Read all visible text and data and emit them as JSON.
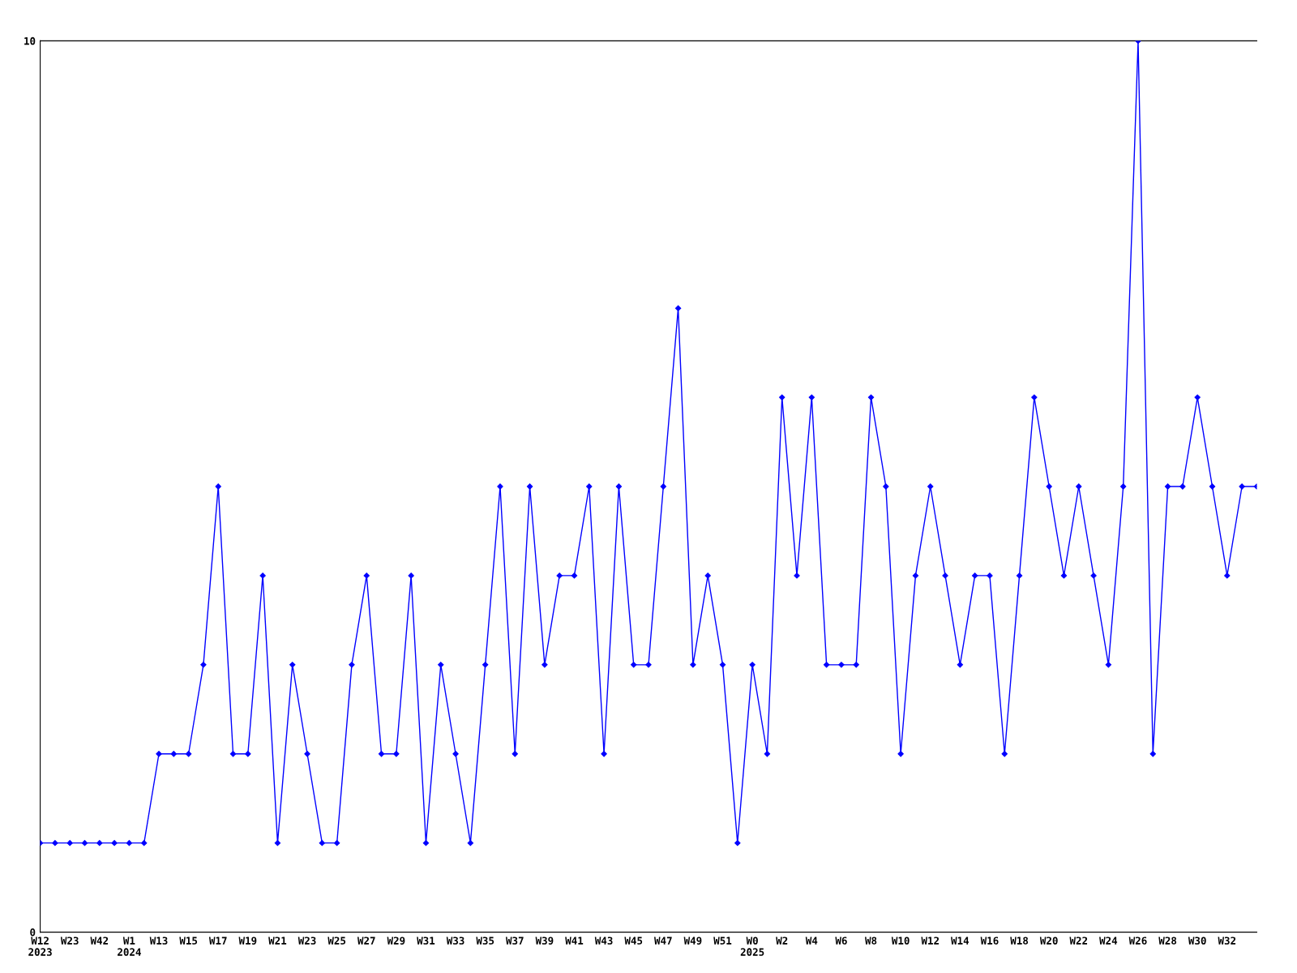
{
  "chart_data": {
    "type": "line",
    "categories": [
      "W12\n2023",
      null,
      "W23",
      null,
      "W42",
      null,
      "W1\n2024",
      null,
      "W13",
      null,
      "W15",
      null,
      "W17",
      null,
      "W19",
      null,
      "W21",
      null,
      "W23",
      null,
      "W25",
      null,
      "W27",
      null,
      "W29",
      null,
      "W31",
      null,
      "W33",
      null,
      "W35",
      null,
      "W37",
      null,
      "W39",
      null,
      "W41",
      null,
      "W43",
      null,
      "W45",
      null,
      "W47",
      null,
      "W49",
      null,
      "W51",
      null,
      "W0\n2025",
      null,
      "W2",
      null,
      "W4",
      null,
      "W6",
      null,
      "W8",
      null,
      "W10",
      null,
      "W12",
      null,
      "W14",
      null,
      "W16",
      null,
      "W18",
      null,
      "W20",
      null,
      "W22",
      null,
      "W24",
      null,
      "W26",
      null,
      "W28",
      null,
      "W30",
      null,
      "W32",
      null,
      null
    ],
    "series": [
      {
        "color": "#0000ff",
        "values": [
          1,
          1,
          1,
          1,
          1,
          1,
          1,
          1,
          2,
          2,
          2,
          3,
          5,
          2,
          2,
          4,
          1,
          3,
          2,
          1,
          1,
          3,
          4,
          2,
          2,
          4,
          1,
          3,
          2,
          1,
          3,
          5,
          2,
          5,
          3,
          4,
          4,
          5,
          2,
          5,
          3,
          3,
          5,
          7,
          3,
          4,
          3,
          1,
          3,
          2,
          6,
          4,
          6,
          3,
          3,
          3,
          6,
          5,
          2,
          4,
          5,
          4,
          3,
          4,
          4,
          2,
          4,
          6,
          5,
          4,
          5,
          4,
          3,
          5,
          10,
          2,
          5,
          5,
          6,
          5,
          4,
          5,
          5
        ]
      }
    ],
    "ylim": [
      0,
      10
    ],
    "yticks": [
      0,
      10
    ],
    "marker": "diamond",
    "line_style": "solid"
  }
}
